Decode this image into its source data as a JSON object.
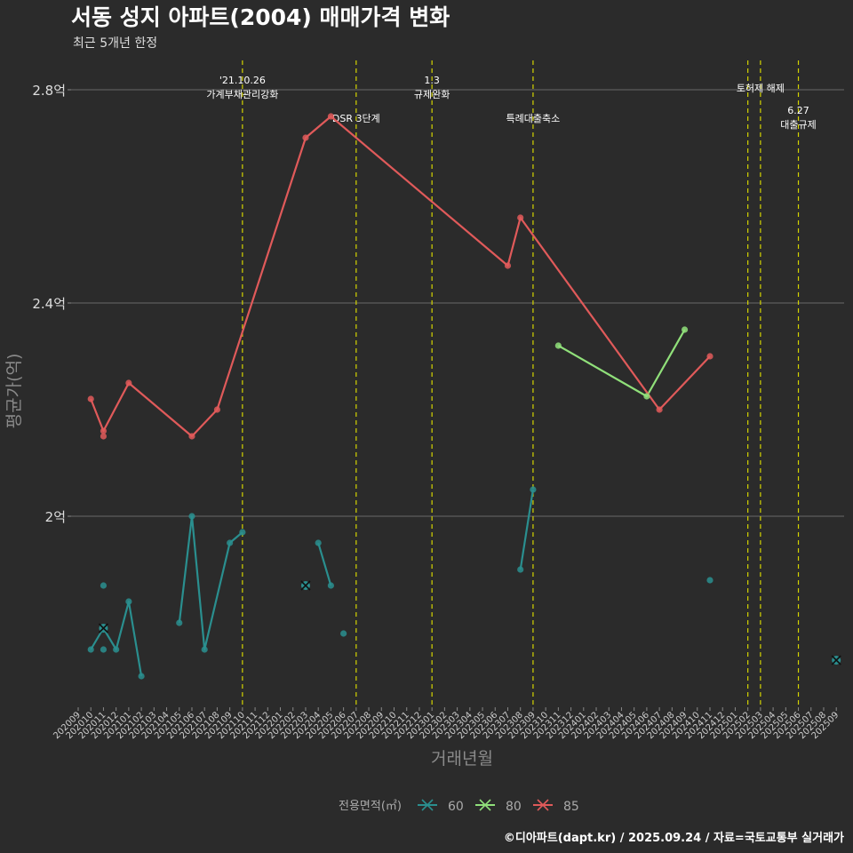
{
  "chart_data": {
    "type": "line",
    "title": "서동 성지 아파트(2004) 매매가격 변화",
    "subtitle": "최근 5개년 한정",
    "xlabel": "거래년월",
    "ylabel": "평균가(억)",
    "ylim": [
      1.65,
      2.87
    ],
    "yticks": [
      {
        "value": 2.0,
        "label": "2억"
      },
      {
        "value": 2.4,
        "label": "2.4억"
      },
      {
        "value": 2.8,
        "label": "2.8억"
      }
    ],
    "categories": [
      "202009",
      "202010",
      "202011",
      "202012",
      "202101",
      "202102",
      "202103",
      "202104",
      "202105",
      "202106",
      "202107",
      "202108",
      "202109",
      "202110",
      "202111",
      "202112",
      "202201",
      "202202",
      "202203",
      "202204",
      "202205",
      "202206",
      "202207",
      "202208",
      "202209",
      "202210",
      "202211",
      "202212",
      "202301",
      "202302",
      "202303",
      "202304",
      "202305",
      "202306",
      "202307",
      "202308",
      "202309",
      "202310",
      "202311",
      "202312",
      "202401",
      "202402",
      "202403",
      "202404",
      "202405",
      "202406",
      "202407",
      "202408",
      "202409",
      "202410",
      "202411",
      "202412",
      "202501",
      "202502",
      "202503",
      "202504",
      "202505",
      "202506",
      "202507",
      "202508",
      "202509"
    ],
    "series": [
      {
        "name": "60",
        "color": "#2a8f8f",
        "lines": [
          [
            [
              "202010",
              1.75
            ],
            [
              "202011",
              1.79
            ],
            [
              "202012",
              1.75
            ],
            [
              "202101",
              1.84
            ],
            [
              "202102",
              1.7
            ]
          ],
          [
            [
              "202105",
              1.8
            ],
            [
              "202106",
              2.0
            ],
            [
              "202107",
              1.75
            ],
            [
              "202109",
              1.95
            ],
            [
              "202110",
              1.97
            ]
          ],
          [
            [
              "202204",
              1.95
            ],
            [
              "202205",
              1.87
            ]
          ],
          [
            [
              "202308",
              1.9
            ],
            [
              "202309",
              2.05
            ]
          ]
        ],
        "points": [
          [
            "202010",
            1.75
          ],
          [
            "202011",
            1.79
          ],
          [
            "202011",
            1.75
          ],
          [
            "202011",
            1.87
          ],
          [
            "202012",
            1.75
          ],
          [
            "202101",
            1.84
          ],
          [
            "202102",
            1.7
          ],
          [
            "202105",
            1.8
          ],
          [
            "202106",
            2.0
          ],
          [
            "202107",
            1.75
          ],
          [
            "202109",
            1.95
          ],
          [
            "202110",
            1.97
          ],
          [
            "202203",
            1.87
          ],
          [
            "202204",
            1.95
          ],
          [
            "202205",
            1.87
          ],
          [
            "202206",
            1.78
          ],
          [
            "202308",
            1.9
          ],
          [
            "202309",
            2.05
          ],
          [
            "202411",
            1.88
          ],
          [
            "202509",
            1.73
          ]
        ],
        "cross_points": [
          [
            "202011",
            1.79
          ],
          [
            "202203",
            1.87
          ],
          [
            "202509",
            1.73
          ]
        ]
      },
      {
        "name": "80",
        "color": "#90e07a",
        "lines": [
          [
            [
              "202311",
              2.32
            ],
            [
              "202406",
              2.225
            ],
            [
              "202409",
              2.35
            ]
          ]
        ],
        "points": [
          [
            "202311",
            2.32
          ],
          [
            "202406",
            2.225
          ],
          [
            "202409",
            2.35
          ]
        ],
        "cross_points": []
      },
      {
        "name": "85",
        "color": "#e05a5a",
        "lines": [
          [
            [
              "202010",
              2.22
            ],
            [
              "202011",
              2.16
            ],
            [
              "202101",
              2.25
            ],
            [
              "202106",
              2.15
            ],
            [
              "202108",
              2.2
            ],
            [
              "202203",
              2.71
            ],
            [
              "202205",
              2.75
            ],
            [
              "202307",
              2.47
            ],
            [
              "202308",
              2.56
            ],
            [
              "202407",
              2.2
            ],
            [
              "202411",
              2.3
            ]
          ]
        ],
        "points": [
          [
            "202010",
            2.22
          ],
          [
            "202011",
            2.16
          ],
          [
            "202011",
            2.15
          ],
          [
            "202101",
            2.25
          ],
          [
            "202106",
            2.15
          ],
          [
            "202108",
            2.2
          ],
          [
            "202203",
            2.71
          ],
          [
            "202205",
            2.75
          ],
          [
            "202307",
            2.47
          ],
          [
            "202308",
            2.56
          ],
          [
            "202407",
            2.2
          ],
          [
            "202411",
            2.3
          ]
        ],
        "cross_points": []
      }
    ],
    "vlines": [
      "202110",
      "202207",
      "202301",
      "202309",
      "202502",
      "202503",
      "202506"
    ],
    "annotations": [
      {
        "x": "202110",
        "lines": [
          "'21.10.26",
          "가계부채관리강화"
        ],
        "level": 0
      },
      {
        "x": "202207",
        "lines": [
          "DSR 3단계"
        ],
        "level": 1
      },
      {
        "x": "202301",
        "lines": [
          "1.3",
          "규제완화"
        ],
        "level": 0
      },
      {
        "x": "202309",
        "lines": [
          "특례대출축소"
        ],
        "level": 1
      },
      {
        "x": "202503",
        "lines": [
          "토허제 해제"
        ],
        "level": 0
      },
      {
        "x": "202506",
        "lines": [
          "6.27",
          "대출규제"
        ],
        "level": 1
      }
    ],
    "legend": {
      "title": "전용면적(㎡)",
      "position": "bottom",
      "items": [
        "60",
        "80",
        "85"
      ]
    },
    "caption": "©디아파트(dapt.kr) / 2025.09.24 / 자료=국토교통부 실거래가"
  }
}
